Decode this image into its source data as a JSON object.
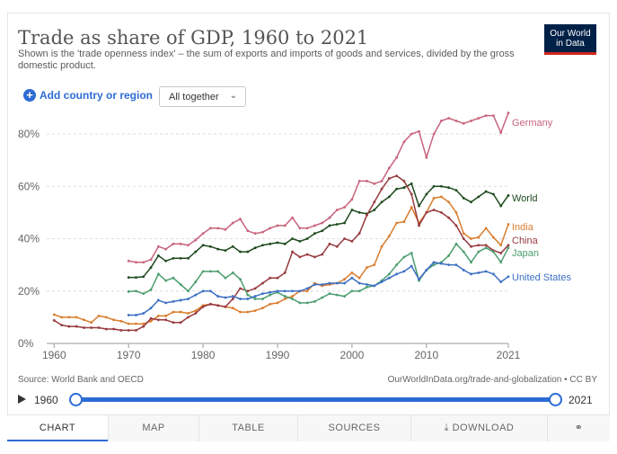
{
  "header": {
    "title": "Trade as share of GDP, 1960 to 2021",
    "subtitle": "Shown is the 'trade openness index' – the sum of exports and imports of goods and services, divided by the gross domestic product.",
    "logo_line1": "Our World",
    "logo_line2": "in Data"
  },
  "controls": {
    "add_label": "Add country or region",
    "dropdown_value": "All together"
  },
  "footer": {
    "source": "Source: World Bank and OECD",
    "license": "OurWorldInData.org/trade-and-globalization • CC BY"
  },
  "timeline": {
    "start": "1960",
    "end": "2021"
  },
  "tabs": {
    "chart": "CHART",
    "map": "MAP",
    "table": "TABLE",
    "sources": "SOURCES",
    "download": "DOWNLOAD"
  },
  "colors": {
    "Germany": "#c8647c",
    "World": "#1e4a1e",
    "India": "#d97d2e",
    "China": "#973a3e",
    "Japan": "#4b9e6e",
    "United States": "#3c6fc4"
  },
  "chart_data": {
    "type": "line",
    "title": "Trade as share of GDP, 1960 to 2021",
    "ylabel": "",
    "xlabel": "",
    "ylim": [
      0,
      90
    ],
    "xlim": [
      1959,
      2021
    ],
    "yticks": [
      "0%",
      "20%",
      "40%",
      "60%",
      "80%"
    ],
    "ytick_values": [
      0,
      20,
      40,
      60,
      80
    ],
    "xticks": [
      "1960",
      "1970",
      "1980",
      "1990",
      "2000",
      "2010",
      "2021"
    ],
    "xtick_values": [
      1960,
      1970,
      1980,
      1990,
      2000,
      2010,
      2021
    ],
    "series": [
      {
        "name": "Germany",
        "x": [
          1970,
          1971,
          1972,
          1973,
          1974,
          1975,
          1976,
          1977,
          1978,
          1979,
          1980,
          1981,
          1982,
          1983,
          1984,
          1985,
          1986,
          1987,
          1988,
          1989,
          1990,
          1991,
          1992,
          1993,
          1994,
          1995,
          1996,
          1997,
          1998,
          1999,
          2000,
          2001,
          2002,
          2003,
          2004,
          2005,
          2006,
          2007,
          2008,
          2009,
          2010,
          2011,
          2012,
          2013,
          2014,
          2015,
          2016,
          2017,
          2018,
          2019,
          2020,
          2021
        ],
        "values": [
          31.5,
          31,
          31,
          32,
          37,
          36,
          38,
          38,
          37.5,
          39.5,
          42,
          44,
          44,
          43.5,
          46,
          47.5,
          43,
          42,
          42.5,
          44,
          45,
          45,
          48,
          44,
          44,
          45,
          46,
          48,
          51,
          52,
          55,
          62,
          62,
          61,
          62,
          67,
          71,
          77,
          80,
          81,
          71,
          80,
          85,
          86,
          85,
          84,
          85,
          86,
          87,
          87,
          80.5,
          88
        ]
      },
      {
        "name": "World",
        "x": [
          1970,
          1971,
          1972,
          1973,
          1974,
          1975,
          1976,
          1977,
          1978,
          1979,
          1980,
          1981,
          1982,
          1983,
          1984,
          1985,
          1986,
          1987,
          1988,
          1989,
          1990,
          1991,
          1992,
          1993,
          1994,
          1995,
          1996,
          1997,
          1998,
          1999,
          2000,
          2001,
          2002,
          2003,
          2004,
          2005,
          2006,
          2007,
          2008,
          2009,
          2010,
          2011,
          2012,
          2013,
          2014,
          2015,
          2016,
          2017,
          2018,
          2019,
          2020,
          2021
        ],
        "values": [
          25.2,
          25.2,
          25.5,
          29,
          33.5,
          31.5,
          32.5,
          32.5,
          32.5,
          35,
          37.5,
          37,
          36,
          35.5,
          37,
          35,
          35,
          36.5,
          37.5,
          38,
          38.5,
          38,
          40,
          39,
          40,
          42,
          43,
          45,
          45.5,
          46,
          51,
          50,
          49.5,
          51,
          54,
          56,
          59,
          59.5,
          61,
          52.5,
          57,
          60,
          60,
          59.5,
          58.5,
          55.5,
          54,
          56,
          58,
          57,
          52.5,
          56.5
        ]
      },
      {
        "name": "India",
        "x": [
          1960,
          1961,
          1962,
          1963,
          1964,
          1965,
          1966,
          1967,
          1968,
          1969,
          1970,
          1971,
          1972,
          1973,
          1974,
          1975,
          1976,
          1977,
          1978,
          1979,
          1980,
          1981,
          1982,
          1983,
          1984,
          1985,
          1986,
          1987,
          1988,
          1989,
          1990,
          1991,
          1992,
          1993,
          1994,
          1995,
          1996,
          1997,
          1998,
          1999,
          2000,
          2001,
          2002,
          2003,
          2004,
          2005,
          2006,
          2007,
          2008,
          2009,
          2010,
          2011,
          2012,
          2013,
          2014,
          2015,
          2016,
          2017,
          2018,
          2019,
          2020,
          2021
        ],
        "values": [
          11,
          10,
          10,
          10,
          9,
          8,
          10.5,
          10,
          9,
          8.5,
          7.5,
          7.5,
          7.5,
          8.5,
          10.5,
          10.5,
          12,
          12,
          11.5,
          12.5,
          14.5,
          15,
          14.5,
          14,
          13.5,
          12,
          12,
          12.5,
          13.5,
          15,
          15.5,
          17,
          18,
          20,
          20,
          23,
          22,
          22.5,
          23,
          24.5,
          27,
          25,
          29,
          30,
          37,
          41,
          46,
          46.5,
          52,
          46,
          50,
          55.5,
          56,
          54,
          50,
          42,
          40,
          40.5,
          44,
          40.5,
          37.5,
          45.5
        ]
      },
      {
        "name": "China",
        "x": [
          1960,
          1961,
          1962,
          1963,
          1964,
          1965,
          1966,
          1967,
          1968,
          1969,
          1970,
          1971,
          1972,
          1973,
          1974,
          1975,
          1976,
          1977,
          1978,
          1979,
          1980,
          1981,
          1982,
          1983,
          1984,
          1985,
          1986,
          1987,
          1988,
          1989,
          1990,
          1991,
          1992,
          1993,
          1994,
          1995,
          1996,
          1997,
          1998,
          1999,
          2000,
          2001,
          2002,
          2003,
          2004,
          2005,
          2006,
          2007,
          2008,
          2009,
          2010,
          2011,
          2012,
          2013,
          2014,
          2015,
          2016,
          2017,
          2018,
          2019,
          2020,
          2021
        ],
        "values": [
          8.8,
          7,
          6.5,
          6.5,
          6,
          6,
          6,
          5.5,
          5.5,
          5,
          5,
          5,
          6.5,
          9.5,
          9,
          9,
          8,
          8,
          10,
          11.5,
          14,
          15,
          14.5,
          14,
          17,
          21,
          20,
          21,
          23,
          25,
          25,
          27,
          35,
          33,
          34,
          33,
          34,
          38,
          37,
          40,
          39,
          42,
          49,
          54,
          59,
          63,
          64,
          62,
          57,
          45,
          50,
          51,
          50,
          48,
          45,
          40,
          37,
          37.5,
          37.5,
          35.5,
          34.5,
          37.5
        ]
      },
      {
        "name": "Japan",
        "x": [
          1970,
          1971,
          1972,
          1973,
          1974,
          1975,
          1976,
          1977,
          1978,
          1979,
          1980,
          1981,
          1982,
          1983,
          1984,
          1985,
          1986,
          1987,
          1988,
          1989,
          1990,
          1991,
          1992,
          1993,
          1994,
          1995,
          1996,
          1997,
          1998,
          1999,
          2000,
          2001,
          2002,
          2003,
          2004,
          2005,
          2006,
          2007,
          2008,
          2009,
          2010,
          2011,
          2012,
          2013,
          2014,
          2015,
          2016,
          2017,
          2018,
          2019,
          2020,
          2021
        ],
        "values": [
          19.8,
          20,
          19,
          20.5,
          26.5,
          24,
          25,
          22.5,
          20,
          23.5,
          27.5,
          27.5,
          27.5,
          25,
          27,
          24.5,
          18.5,
          17,
          17,
          18.5,
          19.5,
          18,
          17,
          15.5,
          15.5,
          16,
          17.5,
          19,
          18.5,
          18,
          20,
          20,
          21.5,
          22,
          24,
          26.5,
          30,
          33,
          34.5,
          24,
          28,
          30,
          31,
          33.5,
          38,
          35,
          31,
          35,
          36.5,
          35,
          31,
          36.5
        ]
      },
      {
        "name": "United States",
        "x": [
          1970,
          1971,
          1972,
          1973,
          1974,
          1975,
          1976,
          1977,
          1978,
          1979,
          1980,
          1981,
          1982,
          1983,
          1984,
          1985,
          1986,
          1987,
          1988,
          1989,
          1990,
          1991,
          1992,
          1993,
          1994,
          1995,
          1996,
          1997,
          1998,
          1999,
          2000,
          2001,
          2002,
          2003,
          2004,
          2005,
          2006,
          2007,
          2008,
          2009,
          2010,
          2011,
          2012,
          2013,
          2014,
          2015,
          2016,
          2017,
          2018,
          2019,
          2020,
          2021
        ],
        "values": [
          10.8,
          10.8,
          11.5,
          13.5,
          16.5,
          15.5,
          16,
          16.5,
          17,
          18.5,
          20,
          20,
          18,
          17.5,
          18,
          17,
          17,
          18,
          19,
          19.5,
          20,
          20,
          20,
          20,
          21,
          22.5,
          22.5,
          23,
          23,
          23,
          25,
          23,
          22.5,
          22,
          23.5,
          25,
          26.5,
          27.5,
          29.5,
          24.5,
          28,
          31,
          30.5,
          30,
          30,
          28,
          26.5,
          27,
          27.5,
          26.5,
          23.5,
          25.5
        ]
      }
    ]
  }
}
